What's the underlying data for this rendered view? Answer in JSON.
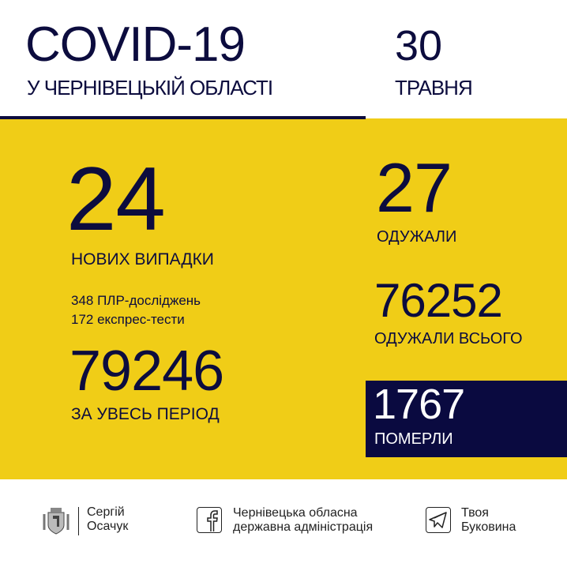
{
  "header": {
    "title": "COVID-19",
    "subtitle": "У ЧЕРНІВЕЦЬКІЙ ОБЛАСТІ",
    "day": "30",
    "month": "ТРАВНЯ"
  },
  "stats": {
    "new_cases": {
      "value": "24",
      "label": "НОВИХ ВИПАДКИ"
    },
    "tests": {
      "pcr": "348 ПЛР-досліджень",
      "express": "172 експрес-тести"
    },
    "total": {
      "value": "79246",
      "label": "ЗА УВЕСЬ ПЕРІОД"
    },
    "recovered": {
      "value": "27",
      "label": "ОДУЖАЛИ"
    },
    "recovered_total": {
      "value": "76252",
      "label": "ОДУЖАЛИ ВСЬОГО"
    },
    "deaths": {
      "value": "1767",
      "label": "ПОМЕРЛИ"
    }
  },
  "footer": {
    "person": {
      "line1": "Сергій",
      "line2": "Осачук",
      "icon": "coat-of-arms-icon"
    },
    "facebook": {
      "line1": "Чернівецька обласна",
      "line2": "державна адміністрація",
      "icon": "facebook-icon"
    },
    "telegram": {
      "line1": "Твоя",
      "line2": "Буковина",
      "icon": "telegram-icon"
    }
  },
  "colors": {
    "yellow": "#f0cd17",
    "navy": "#0c0c3e"
  }
}
